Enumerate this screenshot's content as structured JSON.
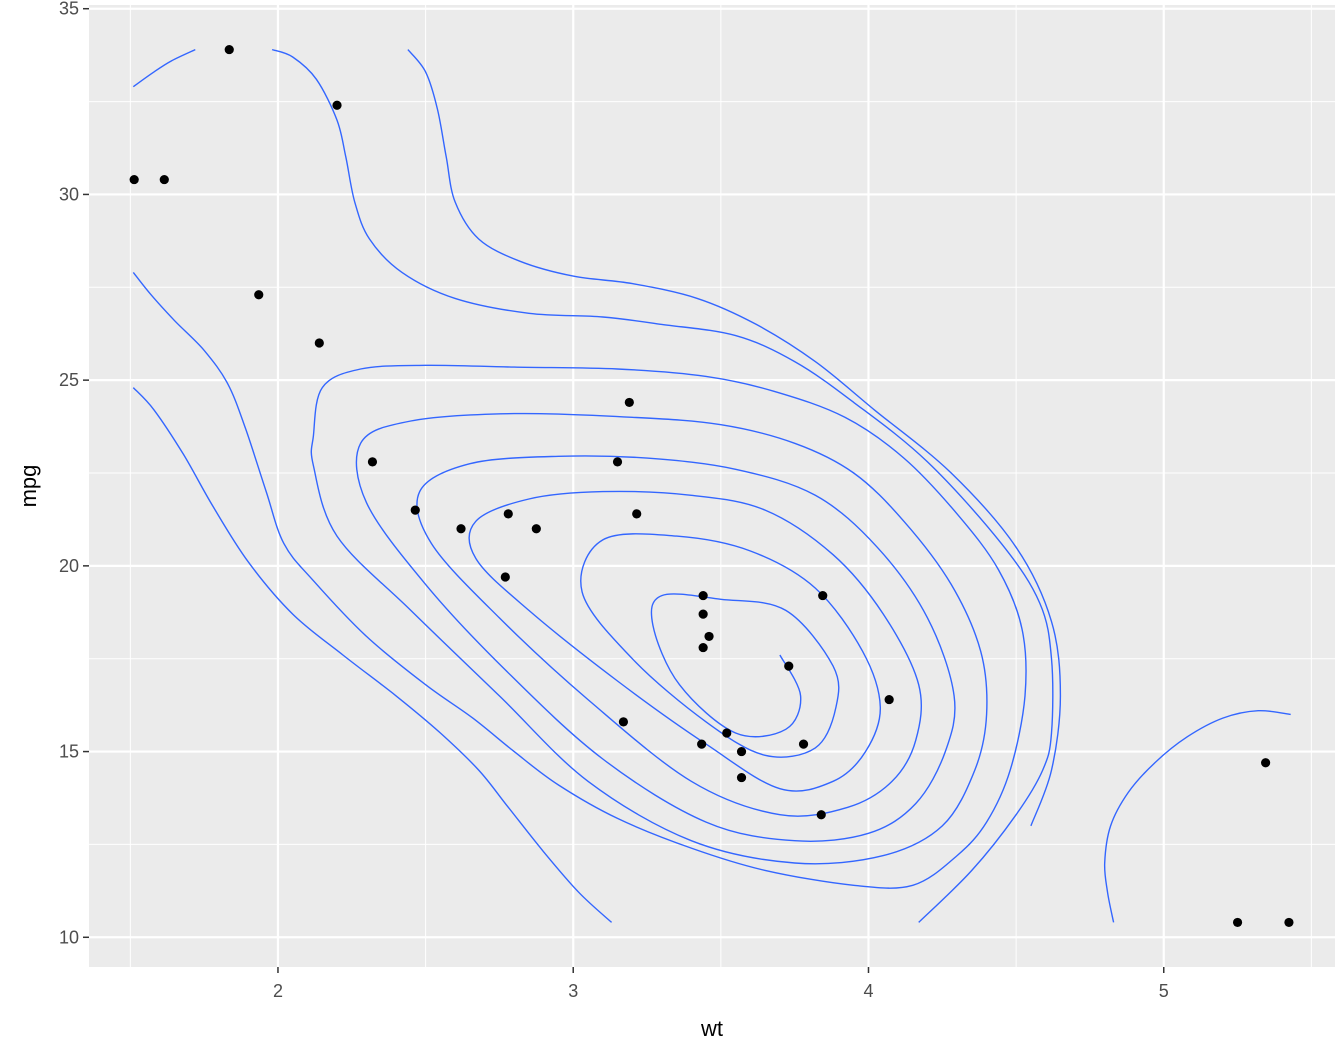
{
  "chart_data": {
    "type": "scatter",
    "title": "",
    "xlabel": "wt",
    "ylabel": "mpg",
    "xlim": [
      1.36,
      5.58
    ],
    "ylim": [
      9.2,
      35.1
    ],
    "x_ticks": [
      2,
      3,
      4,
      5
    ],
    "x_tick_labels": [
      "2",
      "3",
      "4",
      "5"
    ],
    "y_ticks": [
      10,
      15,
      20,
      25,
      30,
      35
    ],
    "y_tick_labels": [
      "10",
      "15",
      "20",
      "25",
      "30",
      "35"
    ],
    "grid": true,
    "colors": {
      "panel": "#ebebeb",
      "grid": "#ffffff",
      "points": "#000000",
      "contours": "#3366ff"
    },
    "points": [
      {
        "x": 1.513,
        "y": 30.4
      },
      {
        "x": 1.615,
        "y": 30.4
      },
      {
        "x": 1.835,
        "y": 33.9
      },
      {
        "x": 1.935,
        "y": 27.3
      },
      {
        "x": 2.14,
        "y": 26.0
      },
      {
        "x": 2.2,
        "y": 32.4
      },
      {
        "x": 2.32,
        "y": 22.8
      },
      {
        "x": 2.465,
        "y": 21.5
      },
      {
        "x": 2.62,
        "y": 21.0
      },
      {
        "x": 2.77,
        "y": 19.7
      },
      {
        "x": 2.78,
        "y": 21.4
      },
      {
        "x": 2.875,
        "y": 21.0
      },
      {
        "x": 3.15,
        "y": 22.8
      },
      {
        "x": 3.17,
        "y": 15.8
      },
      {
        "x": 3.19,
        "y": 24.4
      },
      {
        "x": 3.215,
        "y": 21.4
      },
      {
        "x": 3.435,
        "y": 15.2
      },
      {
        "x": 3.44,
        "y": 18.7
      },
      {
        "x": 3.44,
        "y": 17.8
      },
      {
        "x": 3.44,
        "y": 19.2
      },
      {
        "x": 3.46,
        "y": 18.1
      },
      {
        "x": 3.52,
        "y": 15.5
      },
      {
        "x": 3.57,
        "y": 15.0
      },
      {
        "x": 3.57,
        "y": 14.3
      },
      {
        "x": 3.73,
        "y": 17.3
      },
      {
        "x": 3.78,
        "y": 15.2
      },
      {
        "x": 3.84,
        "y": 13.3
      },
      {
        "x": 3.845,
        "y": 19.2
      },
      {
        "x": 4.07,
        "y": 16.4
      },
      {
        "x": 5.25,
        "y": 10.4
      },
      {
        "x": 5.345,
        "y": 14.7
      },
      {
        "x": 5.424,
        "y": 10.4
      }
    ],
    "contours": [
      [
        [
          1.51,
          32.9
        ],
        [
          1.58,
          33.3
        ],
        [
          1.64,
          33.6
        ],
        [
          1.72,
          33.9
        ]
      ],
      [
        [
          1.98,
          33.9
        ],
        [
          2.05,
          33.7
        ],
        [
          2.13,
          33.1
        ],
        [
          2.2,
          32.0
        ],
        [
          2.23,
          31.0
        ],
        [
          2.26,
          29.8
        ],
        [
          2.31,
          28.8
        ],
        [
          2.42,
          27.9
        ],
        [
          2.6,
          27.2
        ],
        [
          2.85,
          26.8
        ],
        [
          3.1,
          26.7
        ],
        [
          3.3,
          26.5
        ],
        [
          3.55,
          26.2
        ],
        [
          3.75,
          25.5
        ],
        [
          3.95,
          24.4
        ],
        [
          4.2,
          22.8
        ],
        [
          4.45,
          20.6
        ],
        [
          4.58,
          19.0
        ],
        [
          4.62,
          17.5
        ],
        [
          4.62,
          15.5
        ],
        [
          4.59,
          14.5
        ],
        [
          4.5,
          13.3
        ],
        [
          4.35,
          11.8
        ],
        [
          4.17,
          10.4
        ]
      ],
      [
        [
          1.51,
          27.9
        ],
        [
          1.57,
          27.3
        ],
        [
          1.65,
          26.6
        ],
        [
          1.75,
          25.8
        ],
        [
          1.83,
          24.9
        ],
        [
          1.89,
          23.7
        ],
        [
          1.96,
          22.0
        ],
        [
          2.02,
          20.6
        ],
        [
          2.12,
          19.6
        ],
        [
          2.3,
          18.1
        ],
        [
          2.5,
          16.8
        ],
        [
          2.66,
          15.9
        ],
        [
          2.8,
          15.0
        ],
        [
          2.95,
          14.1
        ],
        [
          3.15,
          13.2
        ],
        [
          3.4,
          12.4
        ],
        [
          3.65,
          11.8
        ],
        [
          3.95,
          11.4
        ],
        [
          4.15,
          11.4
        ],
        [
          4.3,
          12.2
        ],
        [
          4.4,
          13.1
        ],
        [
          4.48,
          14.5
        ],
        [
          4.53,
          16.5
        ],
        [
          4.52,
          18.3
        ],
        [
          4.44,
          19.9
        ],
        [
          4.3,
          21.4
        ],
        [
          4.12,
          22.9
        ],
        [
          3.92,
          24.0
        ],
        [
          3.68,
          24.7
        ],
        [
          3.45,
          25.1
        ],
        [
          3.15,
          25.3
        ],
        [
          2.8,
          25.35
        ],
        [
          2.5,
          25.4
        ],
        [
          2.28,
          25.3
        ],
        [
          2.15,
          24.8
        ],
        [
          2.12,
          23.5
        ],
        [
          2.12,
          22.7
        ],
        [
          2.2,
          20.8
        ],
        [
          2.45,
          18.8
        ],
        [
          2.75,
          16.5
        ],
        [
          3.05,
          14.2
        ],
        [
          3.4,
          12.6
        ],
        [
          3.75,
          12.0
        ],
        [
          4.05,
          12.2
        ],
        [
          4.25,
          13.0
        ],
        [
          4.36,
          14.5
        ],
        [
          4.4,
          16.0
        ],
        [
          4.38,
          17.7
        ],
        [
          4.28,
          19.5
        ],
        [
          4.12,
          21.2
        ],
        [
          3.95,
          22.5
        ],
        [
          3.75,
          23.3
        ],
        [
          3.5,
          23.8
        ],
        [
          3.2,
          24.0
        ],
        [
          2.8,
          24.1
        ],
        [
          2.45,
          23.9
        ],
        [
          2.28,
          23.3
        ],
        [
          2.3,
          21.7
        ],
        [
          2.5,
          19.5
        ],
        [
          2.77,
          17.2
        ],
        [
          3.1,
          14.8
        ],
        [
          3.45,
          13.1
        ],
        [
          3.75,
          12.6
        ],
        [
          4.0,
          12.8
        ],
        [
          4.16,
          13.6
        ],
        [
          4.26,
          15.0
        ],
        [
          4.29,
          16.5
        ],
        [
          4.2,
          18.6
        ],
        [
          4.03,
          20.5
        ],
        [
          3.82,
          21.9
        ],
        [
          3.55,
          22.6
        ],
        [
          3.25,
          22.9
        ],
        [
          2.95,
          22.95
        ],
        [
          2.65,
          22.75
        ],
        [
          2.48,
          22.0
        ],
        [
          2.52,
          20.6
        ],
        [
          2.75,
          18.6
        ],
        [
          3.05,
          16.4
        ],
        [
          3.4,
          14.2
        ],
        [
          3.7,
          13.3
        ],
        [
          3.93,
          13.5
        ],
        [
          4.08,
          14.2
        ],
        [
          4.16,
          15.3
        ],
        [
          4.17,
          16.8
        ],
        [
          4.05,
          18.7
        ],
        [
          3.88,
          20.3
        ],
        [
          3.65,
          21.5
        ],
        [
          3.4,
          21.9
        ],
        [
          3.1,
          22.0
        ],
        [
          2.85,
          21.8
        ],
        [
          2.67,
          21.2
        ],
        [
          2.67,
          20.2
        ],
        [
          2.85,
          18.8
        ],
        [
          3.15,
          16.9
        ],
        [
          3.45,
          15.2
        ],
        [
          3.7,
          14.0
        ],
        [
          3.88,
          14.2
        ],
        [
          3.99,
          15.0
        ],
        [
          4.04,
          16.2
        ],
        [
          3.98,
          17.7
        ],
        [
          3.82,
          19.4
        ],
        [
          3.6,
          20.4
        ],
        [
          3.35,
          20.8
        ],
        [
          3.1,
          20.7
        ],
        [
          3.03,
          19.3
        ],
        [
          3.2,
          17.5
        ],
        [
          3.45,
          15.8
        ],
        [
          3.65,
          14.9
        ],
        [
          3.82,
          15.1
        ],
        [
          3.89,
          16.2
        ],
        [
          3.88,
          17.3
        ],
        [
          3.72,
          18.8
        ],
        [
          3.5,
          19.1
        ],
        [
          3.3,
          19.2
        ],
        [
          3.27,
          18.4
        ],
        [
          3.36,
          16.8
        ],
        [
          3.55,
          15.5
        ],
        [
          3.72,
          15.6
        ],
        [
          3.77,
          16.5
        ],
        [
          3.7,
          17.6
        ]
      ],
      [
        [
          1.51,
          24.8
        ],
        [
          1.58,
          24.2
        ],
        [
          1.68,
          23.0
        ],
        [
          1.78,
          21.6
        ],
        [
          1.9,
          20.1
        ],
        [
          2.05,
          18.7
        ],
        [
          2.22,
          17.6
        ],
        [
          2.4,
          16.5
        ],
        [
          2.55,
          15.5
        ],
        [
          2.68,
          14.5
        ],
        [
          2.78,
          13.5
        ],
        [
          2.9,
          12.3
        ],
        [
          3.02,
          11.2
        ],
        [
          3.13,
          10.4
        ]
      ],
      [
        [
          4.83,
          10.4
        ],
        [
          4.81,
          11.2
        ],
        [
          4.8,
          12.0
        ],
        [
          4.82,
          13.0
        ],
        [
          4.88,
          13.9
        ],
        [
          4.97,
          14.7
        ],
        [
          5.08,
          15.4
        ],
        [
          5.2,
          15.9
        ],
        [
          5.32,
          16.1
        ],
        [
          5.43,
          16.0
        ]
      ],
      [
        [
          2.44,
          33.9
        ],
        [
          2.5,
          33.3
        ],
        [
          2.54,
          32.3
        ],
        [
          2.57,
          31.0
        ],
        [
          2.6,
          29.8
        ],
        [
          2.68,
          28.8
        ],
        [
          2.82,
          28.2
        ],
        [
          3.0,
          27.8
        ],
        [
          3.2,
          27.6
        ],
        [
          3.42,
          27.2
        ],
        [
          3.62,
          26.5
        ],
        [
          3.82,
          25.5
        ],
        [
          4.02,
          24.2
        ],
        [
          4.28,
          22.5
        ],
        [
          4.5,
          20.5
        ],
        [
          4.62,
          18.5
        ],
        [
          4.65,
          16.5
        ],
        [
          4.62,
          14.5
        ],
        [
          4.55,
          13.0
        ]
      ]
    ]
  }
}
